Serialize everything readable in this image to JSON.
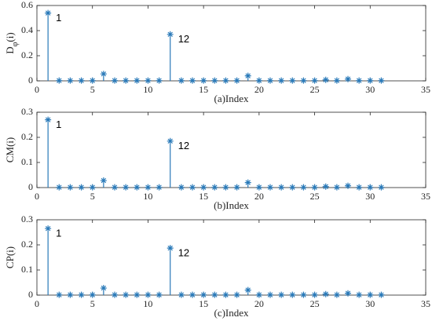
{
  "chart_data": [
    {
      "type": "stem",
      "ylabel_parts": [
        "D",
        "φ",
        "(i)"
      ],
      "xlabel": "(a)Index",
      "x": [
        1,
        2,
        3,
        4,
        5,
        6,
        7,
        8,
        9,
        10,
        11,
        12,
        13,
        14,
        15,
        16,
        17,
        18,
        19,
        20,
        21,
        22,
        23,
        24,
        25,
        26,
        27,
        28,
        29,
        30,
        31
      ],
      "series": [
        {
          "color": "#2a7ab9",
          "values": [
            0.54,
            0.002,
            0.002,
            0.002,
            0.002,
            0.055,
            0.002,
            0.002,
            0.002,
            0.002,
            0.002,
            0.37,
            0.002,
            0.002,
            0.002,
            0.002,
            0.002,
            0.002,
            0.04,
            0.002,
            0.002,
            0.002,
            0.002,
            0.002,
            0.002,
            0.008,
            0.002,
            0.014,
            0.002,
            0.002,
            0.002
          ]
        }
      ],
      "annotations": [
        "1",
        "12"
      ],
      "xlim": [
        0,
        35
      ],
      "xticks": [
        0,
        5,
        10,
        15,
        20,
        25,
        30,
        35
      ],
      "ylim": [
        0,
        0.6
      ],
      "yticks": [
        0,
        0.2,
        0.4,
        0.6
      ]
    },
    {
      "type": "stem",
      "ylabel_parts": [
        "CM(i)"
      ],
      "xlabel": "(b)Index",
      "x": [
        1,
        2,
        3,
        4,
        5,
        6,
        7,
        8,
        9,
        10,
        11,
        12,
        13,
        14,
        15,
        16,
        17,
        18,
        19,
        20,
        21,
        22,
        23,
        24,
        25,
        26,
        27,
        28,
        29,
        30,
        31
      ],
      "series": [
        {
          "color": "#2a7ab9",
          "values": [
            0.27,
            0.001,
            0.001,
            0.001,
            0.001,
            0.028,
            0.001,
            0.001,
            0.001,
            0.001,
            0.001,
            0.185,
            0.001,
            0.001,
            0.001,
            0.001,
            0.001,
            0.001,
            0.02,
            0.001,
            0.001,
            0.001,
            0.001,
            0.001,
            0.001,
            0.004,
            0.001,
            0.007,
            0.001,
            0.001,
            0.001
          ]
        }
      ],
      "annotations": [
        "1",
        "12"
      ],
      "xlim": [
        0,
        35
      ],
      "xticks": [
        0,
        5,
        10,
        15,
        20,
        25,
        30,
        35
      ],
      "ylim": [
        0,
        0.3
      ],
      "yticks": [
        0,
        0.1,
        0.2,
        0.3
      ]
    },
    {
      "type": "stem",
      "ylabel_parts": [
        "CP(i)"
      ],
      "xlabel": "(c)Index",
      "x": [
        1,
        2,
        3,
        4,
        5,
        6,
        7,
        8,
        9,
        10,
        11,
        12,
        13,
        14,
        15,
        16,
        17,
        18,
        19,
        20,
        21,
        22,
        23,
        24,
        25,
        26,
        27,
        28,
        29,
        30,
        31
      ],
      "series": [
        {
          "color": "#2a7ab9",
          "values": [
            0.265,
            0.001,
            0.001,
            0.001,
            0.001,
            0.028,
            0.001,
            0.001,
            0.001,
            0.001,
            0.001,
            0.187,
            0.001,
            0.001,
            0.001,
            0.001,
            0.001,
            0.001,
            0.02,
            0.001,
            0.001,
            0.001,
            0.001,
            0.001,
            0.001,
            0.004,
            0.001,
            0.007,
            0.001,
            0.001,
            0.001
          ]
        }
      ],
      "annotations": [
        "1",
        "12"
      ],
      "xlim": [
        0,
        35
      ],
      "xticks": [
        0,
        5,
        10,
        15,
        20,
        25,
        30,
        35
      ],
      "ylim": [
        0,
        0.3
      ],
      "yticks": [
        0,
        0.1,
        0.2,
        0.3
      ]
    }
  ]
}
